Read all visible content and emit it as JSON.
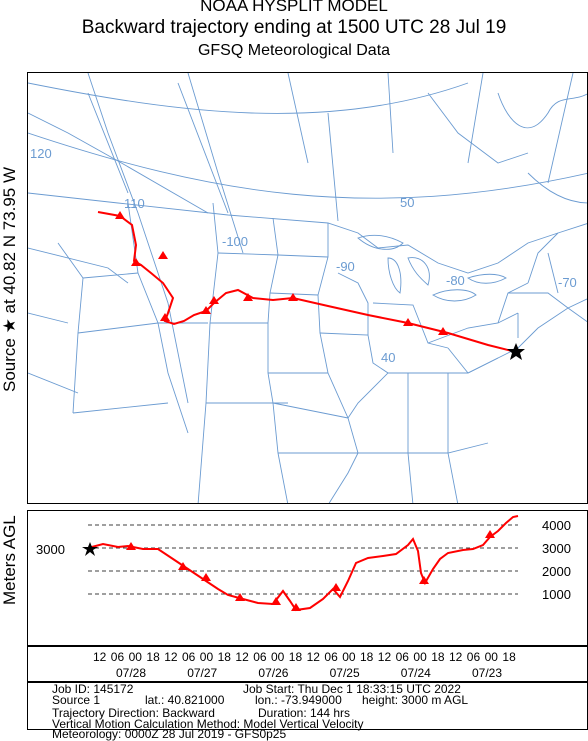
{
  "header": {
    "line1": "NOAA HYSPLIT MODEL",
    "line2": "Backward trajectory ending at 1500 UTC 28 Jul 19",
    "line3": "GFSQ Meteorological Data"
  },
  "side_labels": {
    "source": "Source ★ at   40.82 N   73.95 W",
    "agl": "Meters AGL"
  },
  "map": {
    "lon_labels": [
      "120",
      "110",
      "-100",
      "-90",
      "-80",
      "-70"
    ],
    "lat_labels": [
      "50",
      "40"
    ],
    "source_marker": "star-icon",
    "colors": {
      "trajectory": "#ff0000",
      "map_lines": "#6699cc",
      "grid": "#6699cc"
    }
  },
  "height_panel": {
    "start_value": "3000",
    "y_ticks": [
      "4000",
      "3000",
      "2000",
      "1000"
    ]
  },
  "time_axis": {
    "hours": [
      "12",
      "06",
      "00",
      "18",
      "12",
      "06",
      "00",
      "18",
      "12",
      "06",
      "00",
      "18",
      "12",
      "06",
      "00",
      "18",
      "12",
      "06",
      "00",
      "18",
      "12",
      "06",
      "00",
      "18"
    ],
    "dates": [
      "07/28",
      "07/27",
      "07/26",
      "07/25",
      "07/24",
      "07/23"
    ]
  },
  "info": {
    "job_id": "Job ID: 145172",
    "job_start": "Job Start: Thu Dec  1 18:33:15 UTC 2022",
    "source": "Source 1",
    "lat": "lat.: 40.821000",
    "lon": "lon.: -73.949000",
    "height": "height: 3000 m AGL",
    "direction": "Trajectory Direction: Backward",
    "duration": "Duration: 144 hrs",
    "vertical": "Vertical Motion Calculation Method:       Model Vertical Velocity",
    "meteorology": "Meteorology: 0000Z 28 Jul 2019 - GFS0p25"
  }
}
